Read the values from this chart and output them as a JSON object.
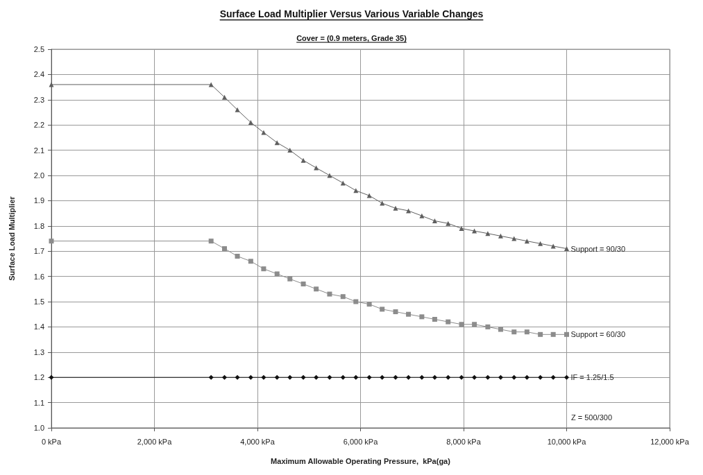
{
  "chart_data": {
    "type": "line",
    "title": "Surface Load Multiplier Versus Various Variable Changes",
    "subtitle": "Cover = (0.9 meters, Grade 35)",
    "xlabel": "Maximum Allowable Operating Pressure,  kPa(ga)",
    "ylabel": "Surface Load Multiplier",
    "x": [
      0,
      3100,
      3360,
      3610,
      3870,
      4120,
      4380,
      4630,
      4890,
      5140,
      5400,
      5660,
      5910,
      6170,
      6420,
      6680,
      6930,
      7190,
      7440,
      7700,
      7960,
      8210,
      8470,
      8720,
      8980,
      9230,
      9490,
      9740,
      10000
    ],
    "series": [
      {
        "name": "Support = 90/30",
        "color": "#5f5f5f",
        "marker": "triangle",
        "values": [
          2.36,
          2.36,
          2.31,
          2.26,
          2.21,
          2.17,
          2.13,
          2.1,
          2.06,
          2.03,
          2.0,
          1.97,
          1.94,
          1.92,
          1.89,
          1.87,
          1.86,
          1.84,
          1.82,
          1.81,
          1.79,
          1.78,
          1.77,
          1.76,
          1.75,
          1.74,
          1.73,
          1.72,
          1.71
        ]
      },
      {
        "name": "Support = 60/30",
        "color": "#8c8c8c",
        "marker": "square",
        "values": [
          1.74,
          1.74,
          1.71,
          1.68,
          1.66,
          1.63,
          1.61,
          1.59,
          1.57,
          1.55,
          1.53,
          1.52,
          1.5,
          1.49,
          1.47,
          1.46,
          1.45,
          1.44,
          1.43,
          1.42,
          1.41,
          1.41,
          1.4,
          1.39,
          1.38,
          1.38,
          1.37,
          1.37,
          1.37
        ]
      },
      {
        "name": "IF = 1.25/1.5",
        "color": "#111111",
        "marker": "diamond",
        "values": [
          1.2,
          1.2,
          1.2,
          1.2,
          1.2,
          1.2,
          1.2,
          1.2,
          1.2,
          1.2,
          1.2,
          1.2,
          1.2,
          1.2,
          1.2,
          1.2,
          1.2,
          1.2,
          1.2,
          1.2,
          1.2,
          1.2,
          1.2,
          1.2,
          1.2,
          1.2,
          1.2,
          1.2,
          1.2
        ]
      }
    ],
    "annotations": [
      "Z = 500/300"
    ],
    "xlim": [
      0,
      12000
    ],
    "xticks": [
      {
        "value": 0,
        "label": "0 kPa"
      },
      {
        "value": 2000,
        "label": "2,000 kPa"
      },
      {
        "value": 4000,
        "label": "4,000 kPa"
      },
      {
        "value": 6000,
        "label": "6,000 kPa"
      },
      {
        "value": 8000,
        "label": "8,000 kPa"
      },
      {
        "value": 10000,
        "label": "10,000 kPa"
      },
      {
        "value": 12000,
        "label": "12,000 kPa"
      }
    ],
    "ylim": [
      1.0,
      2.5
    ],
    "yticks": [
      {
        "value": 1.0,
        "label": "1.0"
      },
      {
        "value": 1.1,
        "label": "1.1"
      },
      {
        "value": 1.2,
        "label": "1.2"
      },
      {
        "value": 1.3,
        "label": "1.3"
      },
      {
        "value": 1.4,
        "label": "1.4"
      },
      {
        "value": 1.5,
        "label": "1.5"
      },
      {
        "value": 1.6,
        "label": "1.6"
      },
      {
        "value": 1.7,
        "label": "1.7"
      },
      {
        "value": 1.8,
        "label": "1.8"
      },
      {
        "value": 1.9,
        "label": "1.9"
      },
      {
        "value": 2.0,
        "label": "2.0"
      },
      {
        "value": 2.1,
        "label": "2.1"
      },
      {
        "value": 2.2,
        "label": "2.2"
      },
      {
        "value": 2.3,
        "label": "2.3"
      },
      {
        "value": 2.4,
        "label": "2.4"
      },
      {
        "value": 2.5,
        "label": "2.5"
      }
    ],
    "grid": true,
    "legend": false,
    "line_style": "solid"
  }
}
